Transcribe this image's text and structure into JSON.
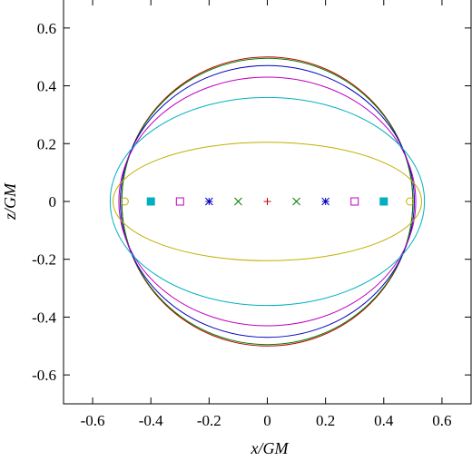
{
  "chart_data": {
    "type": "line",
    "title": "",
    "xlabel": "x/GM",
    "ylabel": "z/GM",
    "xlim": [
      -0.7,
      0.7
    ],
    "ylim": [
      -0.7,
      0.7
    ],
    "xticks": [
      "-0.6",
      "-0.4",
      "-0.2",
      "0",
      "0.2",
      "0.4",
      "0.6"
    ],
    "yticks": [
      "0.6",
      "0.4",
      "0.2",
      "0",
      "-0.2",
      "-0.4",
      "-0.6"
    ],
    "grid": false,
    "legend": "none",
    "series": [
      {
        "color": "#c00000",
        "a": 0.5,
        "b": 0.5
      },
      {
        "color": "#008000",
        "a": 0.5,
        "b": 0.495
      },
      {
        "color": "#0000c0",
        "a": 0.505,
        "b": 0.47
      },
      {
        "color": "#c000c0",
        "a": 0.51,
        "b": 0.43
      },
      {
        "color": "#00b0c0",
        "a": 0.54,
        "b": 0.36
      },
      {
        "color": "#c0b000",
        "a": 0.53,
        "b": 0.205
      }
    ],
    "markers": [
      {
        "x": 0.0,
        "y": 0,
        "symbol": "plus",
        "color": "#c00000"
      },
      {
        "x": -0.1,
        "y": 0,
        "symbol": "cross",
        "color": "#008000"
      },
      {
        "x": 0.1,
        "y": 0,
        "symbol": "cross",
        "color": "#008000"
      },
      {
        "x": -0.2,
        "y": 0,
        "symbol": "asterisk",
        "color": "#0000c0"
      },
      {
        "x": 0.2,
        "y": 0,
        "symbol": "asterisk",
        "color": "#0000c0"
      },
      {
        "x": -0.3,
        "y": 0,
        "symbol": "open-square",
        "color": "#c000c0"
      },
      {
        "x": 0.3,
        "y": 0,
        "symbol": "open-square",
        "color": "#c000c0"
      },
      {
        "x": -0.4,
        "y": 0,
        "symbol": "filled-square",
        "color": "#00b0c0"
      },
      {
        "x": 0.4,
        "y": 0,
        "symbol": "filled-square",
        "color": "#00b0c0"
      },
      {
        "x": -0.49,
        "y": 0,
        "symbol": "open-circle",
        "color": "#c0b000"
      },
      {
        "x": 0.49,
        "y": 0,
        "symbol": "open-circle",
        "color": "#c0b000"
      }
    ]
  }
}
